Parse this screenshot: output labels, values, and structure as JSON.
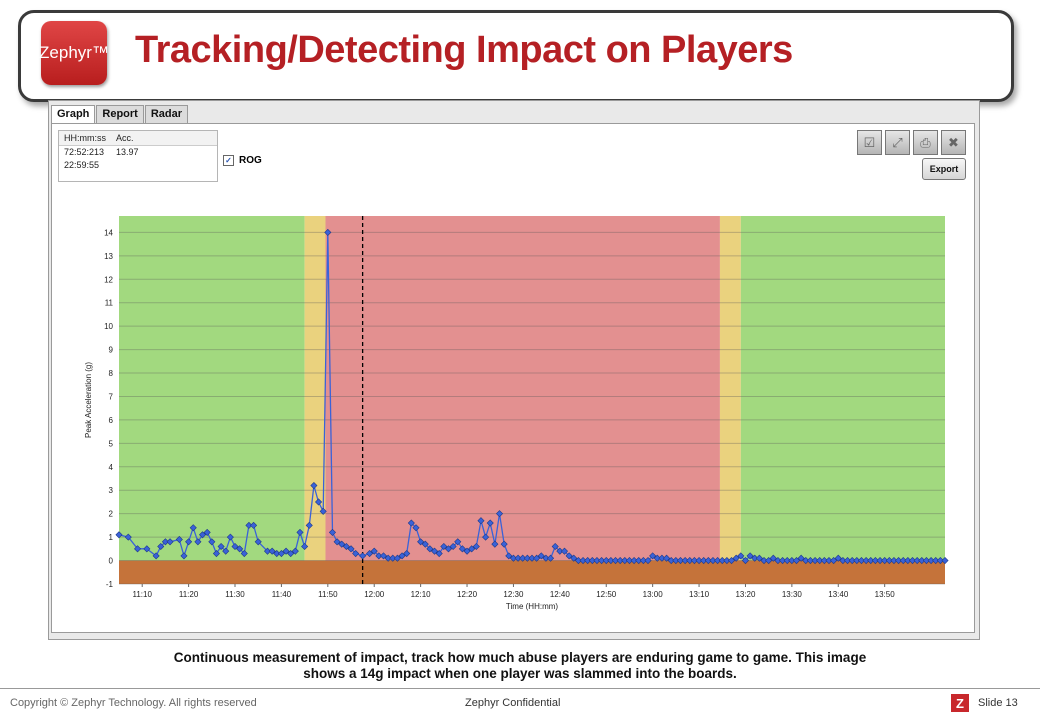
{
  "slide": {
    "title": "Tracking/Detecting Impact on Players",
    "logo_text": "Zephyr™",
    "caption_line1": "Continuous measurement of impact, track how much abuse players are enduring game to game.  This image",
    "caption_line2": "shows a 14g impact when one player was slammed into the boards.",
    "footer_left": "Copyright © Zephyr Technology.  All rights reserved",
    "footer_center": "Zephyr Confidential",
    "slide_badge": "Z",
    "slide_number": "Slide 13"
  },
  "app": {
    "tabs": [
      {
        "label": "Graph",
        "active": true
      },
      {
        "label": "Report",
        "active": false
      },
      {
        "label": "Radar",
        "active": false
      }
    ],
    "info_table": {
      "headers": [
        "HH:mm:ss",
        "Acc."
      ],
      "rows": [
        [
          "72:52:213",
          "13.97"
        ],
        [
          "22:59:55",
          ""
        ]
      ]
    },
    "rog_checkbox": {
      "label": "ROG",
      "checked": true
    },
    "toolbar_icons": [
      "checkbox-icon",
      "expand-icon",
      "print-icon",
      "close-icon"
    ],
    "export_label": "Export"
  },
  "chart_data": {
    "type": "line",
    "xlabel": "Time (HH:mm)",
    "ylabel": "Peak Acceleration (g)",
    "xlim": [
      665,
      843
    ],
    "ylim": [
      -1,
      14.7
    ],
    "x_ticks": [
      "11:10",
      "11:20",
      "11:30",
      "11:40",
      "11:50",
      "12:00",
      "12:10",
      "12:20",
      "12:30",
      "12:40",
      "12:50",
      "13:00",
      "13:10",
      "13:20",
      "13:30",
      "13:40",
      "13:50"
    ],
    "y_ticks": [
      -1,
      0,
      1,
      2,
      3,
      4,
      5,
      6,
      7,
      8,
      9,
      10,
      11,
      12,
      13,
      14
    ],
    "zones": [
      {
        "from": 665,
        "to": 705,
        "color": "#a2d97f"
      },
      {
        "from": 705,
        "to": 709.5,
        "color": "#ead27e"
      },
      {
        "from": 709.5,
        "to": 794.5,
        "color": "#e39090"
      },
      {
        "from": 794.5,
        "to": 799,
        "color": "#ead27e"
      },
      {
        "from": 799,
        "to": 843,
        "color": "#a2d97f"
      }
    ],
    "floor_color": "#c5733a",
    "marker_x": 717.5,
    "series": [
      {
        "x": [
          665,
          667,
          669,
          671,
          673,
          674,
          675,
          676,
          678,
          679,
          680,
          681,
          682,
          683,
          684,
          685,
          686,
          687,
          688,
          689,
          690,
          691,
          692,
          693,
          694,
          695,
          697,
          698,
          699,
          700,
          701,
          702,
          703,
          704,
          705,
          706,
          707,
          708,
          709,
          710,
          711,
          712,
          713,
          714,
          715,
          716,
          717.5,
          719,
          720,
          721,
          722,
          723,
          724,
          725,
          726,
          727,
          728,
          729,
          730,
          731,
          732,
          733,
          734,
          735,
          736,
          737,
          738,
          739,
          740,
          741,
          742,
          743,
          744,
          745,
          746,
          747,
          748,
          749,
          750,
          751,
          752,
          753,
          754,
          755,
          756,
          757,
          758,
          759,
          760,
          761,
          762,
          763,
          764,
          765,
          766,
          767,
          768,
          769,
          770,
          771,
          772,
          773,
          774,
          775,
          776,
          777,
          778,
          779,
          780,
          781,
          782,
          783,
          784,
          785,
          786,
          787,
          788,
          789,
          790,
          791,
          792,
          793,
          794,
          795,
          796,
          797,
          798,
          799,
          800,
          801,
          802,
          803,
          804,
          805,
          806,
          807,
          808,
          809,
          810,
          811,
          812,
          813,
          814,
          815,
          816,
          817,
          818,
          819,
          820,
          821,
          822,
          823,
          824,
          825,
          826,
          827,
          828,
          829,
          830,
          831,
          832,
          833,
          834,
          835,
          836,
          837,
          838,
          839,
          840,
          841,
          842,
          843
        ],
        "y": [
          1.1,
          1.0,
          0.5,
          0.5,
          0.2,
          0.6,
          0.8,
          0.8,
          0.9,
          0.2,
          0.8,
          1.4,
          0.8,
          1.1,
          1.2,
          0.8,
          0.3,
          0.6,
          0.4,
          1.0,
          0.6,
          0.5,
          0.3,
          1.5,
          1.5,
          0.8,
          0.4,
          0.4,
          0.3,
          0.3,
          0.4,
          0.3,
          0.4,
          1.2,
          0.6,
          1.5,
          3.2,
          2.5,
          2.1,
          14.0,
          1.2,
          0.8,
          0.7,
          0.6,
          0.5,
          0.3,
          0.2,
          0.3,
          0.4,
          0.2,
          0.2,
          0.1,
          0.1,
          0.1,
          0.2,
          0.3,
          1.6,
          1.4,
          0.8,
          0.7,
          0.5,
          0.4,
          0.3,
          0.6,
          0.5,
          0.6,
          0.8,
          0.5,
          0.4,
          0.5,
          0.6,
          1.7,
          1.0,
          1.6,
          0.7,
          2.0,
          0.7,
          0.2,
          0.1,
          0.1,
          0.1,
          0.1,
          0.1,
          0.1,
          0.2,
          0.1,
          0.1,
          0.6,
          0.4,
          0.4,
          0.2,
          0.1,
          0.0,
          0.0,
          0.0,
          0.0,
          0.0,
          0.0,
          0.0,
          0.0,
          0.0,
          0.0,
          0.0,
          0.0,
          0.0,
          0.0,
          0.0,
          0.0,
          0.2,
          0.1,
          0.1,
          0.1,
          0.0,
          0.0,
          0.0,
          0.0,
          0.0,
          0.0,
          0.0,
          0.0,
          0.0,
          0.0,
          0.0,
          0.0,
          0.0,
          0.0,
          0.1,
          0.2,
          0.0,
          0.2,
          0.1,
          0.1,
          0.0,
          0.0,
          0.1,
          0.0,
          0.0,
          0.0,
          0.0,
          0.0,
          0.1,
          0.0,
          0.0,
          0.0,
          0.0,
          0.0,
          0.0,
          0.0,
          0.1,
          0.0,
          0.0,
          0.0,
          0.0,
          0.0,
          0.0,
          0.0,
          0.0,
          0.0,
          0.0,
          0.0,
          0.0,
          0.0,
          0.0,
          0.0,
          0.0,
          0.0,
          0.0,
          0.0,
          0.0,
          0.0,
          0.0,
          0.0
        ],
        "color": "#3a62d8"
      }
    ]
  }
}
